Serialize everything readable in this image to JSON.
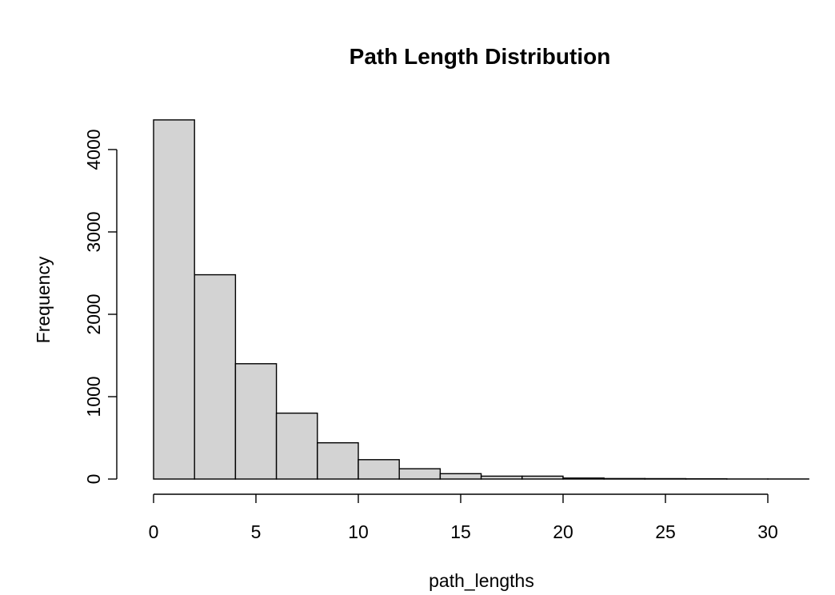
{
  "chart_data": {
    "type": "bar",
    "subtype": "histogram",
    "title": "Path Length Distribution",
    "xlabel": "path_lengths",
    "ylabel": "Frequency",
    "bin_width": 2,
    "bins": [
      {
        "start": 0,
        "end": 2,
        "value": 4360
      },
      {
        "start": 2,
        "end": 4,
        "value": 2480
      },
      {
        "start": 4,
        "end": 6,
        "value": 1400
      },
      {
        "start": 6,
        "end": 8,
        "value": 800
      },
      {
        "start": 8,
        "end": 10,
        "value": 440
      },
      {
        "start": 10,
        "end": 12,
        "value": 235
      },
      {
        "start": 12,
        "end": 14,
        "value": 125
      },
      {
        "start": 14,
        "end": 16,
        "value": 65
      },
      {
        "start": 16,
        "end": 18,
        "value": 35
      },
      {
        "start": 18,
        "end": 20,
        "value": 35
      },
      {
        "start": 20,
        "end": 22,
        "value": 12
      },
      {
        "start": 22,
        "end": 24,
        "value": 6
      },
      {
        "start": 24,
        "end": 26,
        "value": 5
      },
      {
        "start": 26,
        "end": 28,
        "value": 3
      },
      {
        "start": 28,
        "end": 30,
        "value": 1
      },
      {
        "start": 30,
        "end": 32,
        "value": 1
      }
    ],
    "xlim": [
      0,
      32
    ],
    "ylim": [
      0,
      4360
    ],
    "x_ticks": [
      0,
      5,
      10,
      15,
      20,
      25,
      30
    ],
    "y_ticks": [
      0,
      1000,
      2000,
      3000,
      4000
    ],
    "x_tick_labels": [
      "0",
      "5",
      "10",
      "15",
      "20",
      "25",
      "30"
    ],
    "y_tick_labels": [
      "0",
      "1000",
      "2000",
      "3000",
      "4000"
    ],
    "grid": false,
    "legend": "none",
    "bar_fill": "#d3d3d3",
    "bar_stroke": "#000000"
  }
}
